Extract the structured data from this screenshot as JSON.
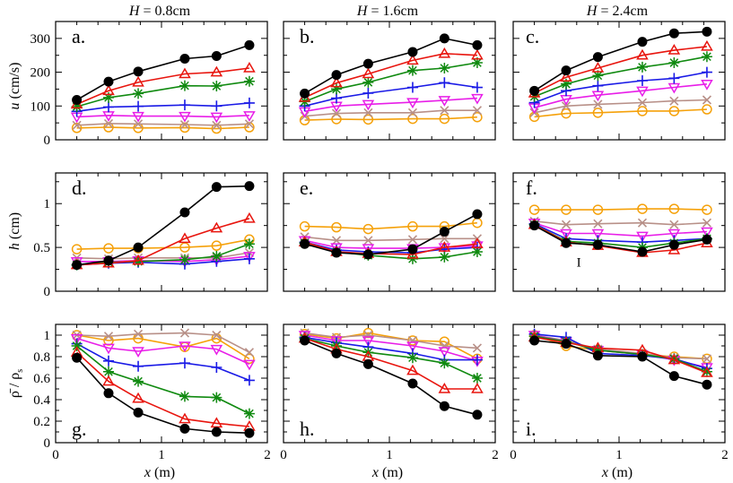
{
  "figure": {
    "column_titles": [
      "H = 0.8cm",
      "H = 1.6cm",
      "H = 2.4cm"
    ],
    "column_titles_var": "H",
    "column_titles_rest": [
      " = 0.8cm",
      " = 1.6cm",
      " = 2.4cm"
    ],
    "x_label_var": "x",
    "x_label_unit": " (m)",
    "row_labels": [
      {
        "var": "u",
        "unit": " (cm/s)"
      },
      {
        "var": "h",
        "unit": " (cm)"
      },
      {
        "var": "ρ̄ / ρ",
        "unit": "s"
      }
    ]
  },
  "series_styles": [
    {
      "name": "black",
      "color": "#000000",
      "marker": "filled-circle"
    },
    {
      "name": "red",
      "color": "#e8150e",
      "marker": "triangle"
    },
    {
      "name": "green",
      "color": "#108a10",
      "marker": "star"
    },
    {
      "name": "blue",
      "color": "#1a1ae6",
      "marker": "plus"
    },
    {
      "name": "magenta",
      "color": "#e81ee8",
      "marker": "triangle-down"
    },
    {
      "name": "tan",
      "color": "#b89088",
      "marker": "cross"
    },
    {
      "name": "orange",
      "color": "#f5a10a",
      "marker": "open-circle"
    }
  ],
  "chart_data": [
    {
      "type": "line",
      "panel": "a.",
      "row": 0,
      "col": 0,
      "xlim": [
        0,
        2
      ],
      "ylim": [
        0,
        350
      ],
      "xticks": [
        "0",
        "1",
        "2"
      ],
      "yticks": [
        "0",
        "100",
        "200",
        "300"
      ],
      "ytick_values": [
        0,
        100,
        200,
        300
      ],
      "x": [
        0.2,
        0.5,
        0.78,
        1.22,
        1.52,
        1.83
      ],
      "series": [
        {
          "name": "black",
          "values": [
            118,
            172,
            202,
            240,
            248,
            280
          ]
        },
        {
          "name": "red",
          "values": [
            105,
            145,
            170,
            195,
            200,
            212
          ]
        },
        {
          "name": "green",
          "values": [
            98,
            125,
            137,
            160,
            159,
            173
          ]
        },
        {
          "name": "blue",
          "values": [
            84,
            97,
            99,
            103,
            100,
            109
          ]
        },
        {
          "name": "magenta",
          "values": [
            68,
            72,
            70,
            70,
            68,
            72
          ]
        },
        {
          "name": "tan",
          "values": [
            43,
            48,
            47,
            45,
            43,
            47
          ]
        },
        {
          "name": "orange",
          "values": [
            35,
            37,
            35,
            36,
            33,
            37
          ]
        }
      ]
    },
    {
      "type": "line",
      "panel": "b.",
      "row": 0,
      "col": 1,
      "xlim": [
        0,
        2
      ],
      "ylim": [
        0,
        350
      ],
      "xticks": [
        "0",
        "1",
        "2"
      ],
      "yticks": [
        "0",
        "100",
        "200",
        "300"
      ],
      "ytick_values": [
        0,
        100,
        200,
        300
      ],
      "x": [
        0.2,
        0.5,
        0.8,
        1.22,
        1.52,
        1.83
      ],
      "series": [
        {
          "name": "black",
          "values": [
            137,
            192,
            225,
            260,
            300,
            280
          ]
        },
        {
          "name": "red",
          "values": [
            125,
            168,
            195,
            235,
            255,
            250
          ]
        },
        {
          "name": "green",
          "values": [
            113,
            150,
            170,
            205,
            212,
            228
          ]
        },
        {
          "name": "blue",
          "values": [
            100,
            123,
            138,
            155,
            169,
            155
          ]
        },
        {
          "name": "magenta",
          "values": [
            84,
            100,
            105,
            111,
            117,
            123
          ]
        },
        {
          "name": "tan",
          "values": [
            70,
            78,
            80,
            80,
            87,
            87
          ]
        },
        {
          "name": "orange",
          "values": [
            58,
            61,
            60,
            62,
            62,
            67
          ]
        }
      ]
    },
    {
      "type": "line",
      "panel": "c.",
      "row": 0,
      "col": 2,
      "xlim": [
        0,
        2
      ],
      "ylim": [
        0,
        350
      ],
      "xticks": [
        "0",
        "1",
        "2"
      ],
      "yticks": [
        "0",
        "100",
        "200",
        "300"
      ],
      "ytick_values": [
        0,
        100,
        200,
        300
      ],
      "x": [
        0.2,
        0.5,
        0.8,
        1.22,
        1.52,
        1.83
      ],
      "series": [
        {
          "name": "black",
          "values": [
            145,
            205,
            245,
            290,
            315,
            320
          ]
        },
        {
          "name": "red",
          "values": [
            138,
            185,
            212,
            250,
            265,
            276
          ]
        },
        {
          "name": "green",
          "values": [
            128,
            165,
            190,
            215,
            228,
            246
          ]
        },
        {
          "name": "blue",
          "values": [
            110,
            145,
            160,
            175,
            182,
            200
          ]
        },
        {
          "name": "magenta",
          "values": [
            95,
            120,
            132,
            145,
            155,
            165
          ]
        },
        {
          "name": "tan",
          "values": [
            80,
            100,
            105,
            110,
            115,
            118
          ]
        },
        {
          "name": "orange",
          "values": [
            68,
            78,
            80,
            85,
            85,
            90
          ]
        }
      ]
    },
    {
      "type": "line",
      "panel": "d.",
      "row": 1,
      "col": 0,
      "xlim": [
        0,
        2
      ],
      "ylim": [
        0,
        1.35
      ],
      "xticks": [
        "0",
        "1",
        "2"
      ],
      "yticks": [
        "0",
        "0.5",
        "1"
      ],
      "ytick_values": [
        0,
        0.5,
        1
      ],
      "x": [
        0.2,
        0.5,
        0.78,
        1.22,
        1.52,
        1.83
      ],
      "series": [
        {
          "name": "black",
          "values": [
            0.3,
            0.35,
            0.5,
            0.9,
            1.19,
            1.2
          ]
        },
        {
          "name": "red",
          "values": [
            0.3,
            0.32,
            0.35,
            0.6,
            0.72,
            0.83
          ]
        },
        {
          "name": "green",
          "values": [
            0.3,
            0.33,
            0.34,
            0.36,
            0.4,
            0.54
          ]
        },
        {
          "name": "blue",
          "values": [
            0.3,
            0.32,
            0.33,
            0.31,
            0.34,
            0.37
          ]
        },
        {
          "name": "magenta",
          "values": [
            0.34,
            0.34,
            0.35,
            0.34,
            0.36,
            0.4
          ]
        },
        {
          "name": "tan",
          "values": [
            0.38,
            0.37,
            0.38,
            0.38,
            0.38,
            0.44
          ]
        },
        {
          "name": "orange",
          "values": [
            0.48,
            0.49,
            0.49,
            0.5,
            0.52,
            0.59
          ]
        }
      ]
    },
    {
      "type": "line",
      "panel": "e.",
      "row": 1,
      "col": 1,
      "xlim": [
        0,
        2
      ],
      "ylim": [
        0,
        1.35
      ],
      "xticks": [
        "0",
        "1",
        "2"
      ],
      "yticks": [
        "0",
        "0.5",
        "1"
      ],
      "ytick_values": [
        0,
        0.5,
        1
      ],
      "x": [
        0.2,
        0.5,
        0.8,
        1.22,
        1.52,
        1.83
      ],
      "series": [
        {
          "name": "black",
          "values": [
            0.54,
            0.44,
            0.42,
            0.48,
            0.68,
            0.88
          ]
        },
        {
          "name": "red",
          "values": [
            0.56,
            0.45,
            0.43,
            0.42,
            0.5,
            0.54
          ]
        },
        {
          "name": "green",
          "values": [
            0.55,
            0.45,
            0.41,
            0.37,
            0.39,
            0.45
          ]
        },
        {
          "name": "blue",
          "values": [
            0.56,
            0.47,
            0.45,
            0.44,
            0.48,
            0.5
          ]
        },
        {
          "name": "magenta",
          "values": [
            0.58,
            0.5,
            0.49,
            0.49,
            0.5,
            0.52
          ]
        },
        {
          "name": "tan",
          "values": [
            0.62,
            0.58,
            0.58,
            0.59,
            0.6,
            0.6
          ]
        },
        {
          "name": "orange",
          "values": [
            0.74,
            0.73,
            0.71,
            0.74,
            0.74,
            0.78
          ]
        }
      ]
    },
    {
      "type": "line",
      "panel": "f.",
      "row": 1,
      "col": 2,
      "xlim": [
        0,
        2
      ],
      "ylim": [
        0,
        1.35
      ],
      "xticks": [
        "0",
        "1",
        "2"
      ],
      "yticks": [
        "0",
        "0.5",
        "1"
      ],
      "ytick_values": [
        0,
        0.5,
        1
      ],
      "annotation": "I",
      "x": [
        0.2,
        0.5,
        0.8,
        1.22,
        1.52,
        1.83
      ],
      "series": [
        {
          "name": "black",
          "values": [
            0.75,
            0.55,
            0.53,
            0.45,
            0.53,
            0.59
          ]
        },
        {
          "name": "red",
          "values": [
            0.76,
            0.56,
            0.52,
            0.44,
            0.47,
            0.55
          ]
        },
        {
          "name": "green",
          "values": [
            0.76,
            0.57,
            0.55,
            0.5,
            0.55,
            0.6
          ]
        },
        {
          "name": "blue",
          "values": [
            0.77,
            0.6,
            0.58,
            0.56,
            0.58,
            0.6
          ]
        },
        {
          "name": "magenta",
          "values": [
            0.78,
            0.66,
            0.66,
            0.63,
            0.66,
            0.68
          ]
        },
        {
          "name": "tan",
          "values": [
            0.8,
            0.76,
            0.77,
            0.78,
            0.76,
            0.78
          ]
        },
        {
          "name": "orange",
          "values": [
            0.93,
            0.93,
            0.93,
            0.94,
            0.94,
            0.93
          ]
        }
      ]
    },
    {
      "type": "line",
      "panel": "g.",
      "row": 2,
      "col": 0,
      "xlim": [
        0,
        2
      ],
      "ylim": [
        0,
        1.1
      ],
      "xticks": [
        "0",
        "1",
        "2"
      ],
      "yticks": [
        "0",
        "0.2",
        "0.4",
        "0.6",
        "0.8",
        "1"
      ],
      "ytick_values": [
        0,
        0.2,
        0.4,
        0.6,
        0.8,
        1
      ],
      "x": [
        0.2,
        0.5,
        0.78,
        1.22,
        1.52,
        1.83
      ],
      "series": [
        {
          "name": "black",
          "values": [
            0.79,
            0.46,
            0.28,
            0.13,
            0.1,
            0.09
          ]
        },
        {
          "name": "red",
          "values": [
            0.84,
            0.57,
            0.41,
            0.22,
            0.18,
            0.15
          ]
        },
        {
          "name": "green",
          "values": [
            0.9,
            0.66,
            0.57,
            0.43,
            0.42,
            0.27
          ]
        },
        {
          "name": "blue",
          "values": [
            0.92,
            0.76,
            0.71,
            0.74,
            0.7,
            0.58
          ]
        },
        {
          "name": "magenta",
          "values": [
            0.97,
            0.88,
            0.85,
            0.9,
            0.87,
            0.73
          ]
        },
        {
          "name": "tan",
          "values": [
            1.0,
            0.99,
            1.01,
            1.02,
            1.0,
            0.84
          ]
        },
        {
          "name": "orange",
          "values": [
            1.0,
            0.95,
            0.97,
            0.89,
            0.97,
            0.78
          ]
        }
      ]
    },
    {
      "type": "line",
      "panel": "h.",
      "row": 2,
      "col": 1,
      "xlim": [
        0,
        2
      ],
      "ylim": [
        0,
        1.1
      ],
      "xticks": [
        "0",
        "1",
        "2"
      ],
      "yticks": [
        "0",
        "0.2",
        "0.4",
        "0.6",
        "0.8",
        "1"
      ],
      "ytick_values": [
        0,
        0.2,
        0.4,
        0.6,
        0.8,
        1
      ],
      "x": [
        0.2,
        0.5,
        0.8,
        1.22,
        1.52,
        1.83
      ],
      "series": [
        {
          "name": "black",
          "values": [
            0.95,
            0.83,
            0.73,
            0.55,
            0.34,
            0.26
          ]
        },
        {
          "name": "red",
          "values": [
            0.97,
            0.87,
            0.8,
            0.67,
            0.5,
            0.5
          ]
        },
        {
          "name": "green",
          "values": [
            0.97,
            0.9,
            0.84,
            0.79,
            0.74,
            0.6
          ]
        },
        {
          "name": "blue",
          "values": [
            0.98,
            0.93,
            0.89,
            0.83,
            0.77,
            0.77
          ]
        },
        {
          "name": "magenta",
          "values": [
            1.0,
            0.95,
            0.95,
            0.9,
            0.85,
            0.76
          ]
        },
        {
          "name": "tan",
          "values": [
            1.02,
            0.98,
            1.0,
            0.95,
            0.9,
            0.88
          ]
        },
        {
          "name": "orange",
          "values": [
            1.01,
            0.97,
            1.02,
            0.95,
            0.94,
            0.78
          ]
        }
      ]
    },
    {
      "type": "line",
      "panel": "i.",
      "row": 2,
      "col": 2,
      "xlim": [
        0,
        2
      ],
      "ylim": [
        0,
        1.1
      ],
      "xticks": [
        "0",
        "1",
        "2"
      ],
      "yticks": [
        "0",
        "0.2",
        "0.4",
        "0.6",
        "0.8",
        "1"
      ],
      "ytick_values": [
        0,
        0.2,
        0.4,
        0.6,
        0.8,
        1
      ],
      "x": [
        0.2,
        0.5,
        0.8,
        1.22,
        1.52,
        1.83
      ],
      "series": [
        {
          "name": "black",
          "values": [
            0.95,
            0.92,
            0.81,
            0.8,
            0.62,
            0.54
          ]
        },
        {
          "name": "red",
          "values": [
            0.98,
            0.93,
            0.88,
            0.86,
            0.77,
            0.65
          ]
        },
        {
          "name": "green",
          "values": [
            0.99,
            0.94,
            0.86,
            0.82,
            0.78,
            0.66
          ]
        },
        {
          "name": "blue",
          "values": [
            1.01,
            0.98,
            0.83,
            0.81,
            0.78,
            0.69
          ]
        },
        {
          "name": "magenta",
          "values": [
            1.0,
            0.94,
            0.86,
            0.82,
            0.77,
            0.7
          ]
        },
        {
          "name": "tan",
          "values": [
            1.0,
            0.95,
            0.87,
            0.83,
            0.79,
            0.78
          ]
        },
        {
          "name": "orange",
          "values": [
            1.0,
            0.9,
            0.86,
            0.82,
            0.8,
            0.78
          ]
        }
      ]
    }
  ]
}
